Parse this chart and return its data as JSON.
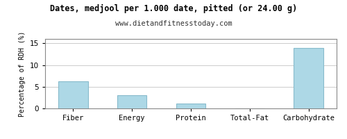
{
  "title": "Dates, medjool per 1.000 date, pitted (or 24.00 g)",
  "subtitle": "www.dietandfitnesstoday.com",
  "categories": [
    "Fiber",
    "Energy",
    "Protein",
    "Total-Fat",
    "Carbohydrate"
  ],
  "values": [
    6.2,
    3.0,
    1.1,
    0.05,
    14.0
  ],
  "bar_color": "#add8e6",
  "bar_edge_color": "#88bbcc",
  "ylabel": "Percentage of RDH (%)",
  "ylim": [
    0,
    16
  ],
  "yticks": [
    0,
    5,
    10,
    15
  ],
  "background_color": "#ffffff",
  "border_color": "#888888",
  "title_fontsize": 8.5,
  "subtitle_fontsize": 7.5,
  "ylabel_fontsize": 7.0,
  "tick_fontsize": 7.5,
  "grid_color": "#cccccc",
  "figure_border_color": "#888888"
}
